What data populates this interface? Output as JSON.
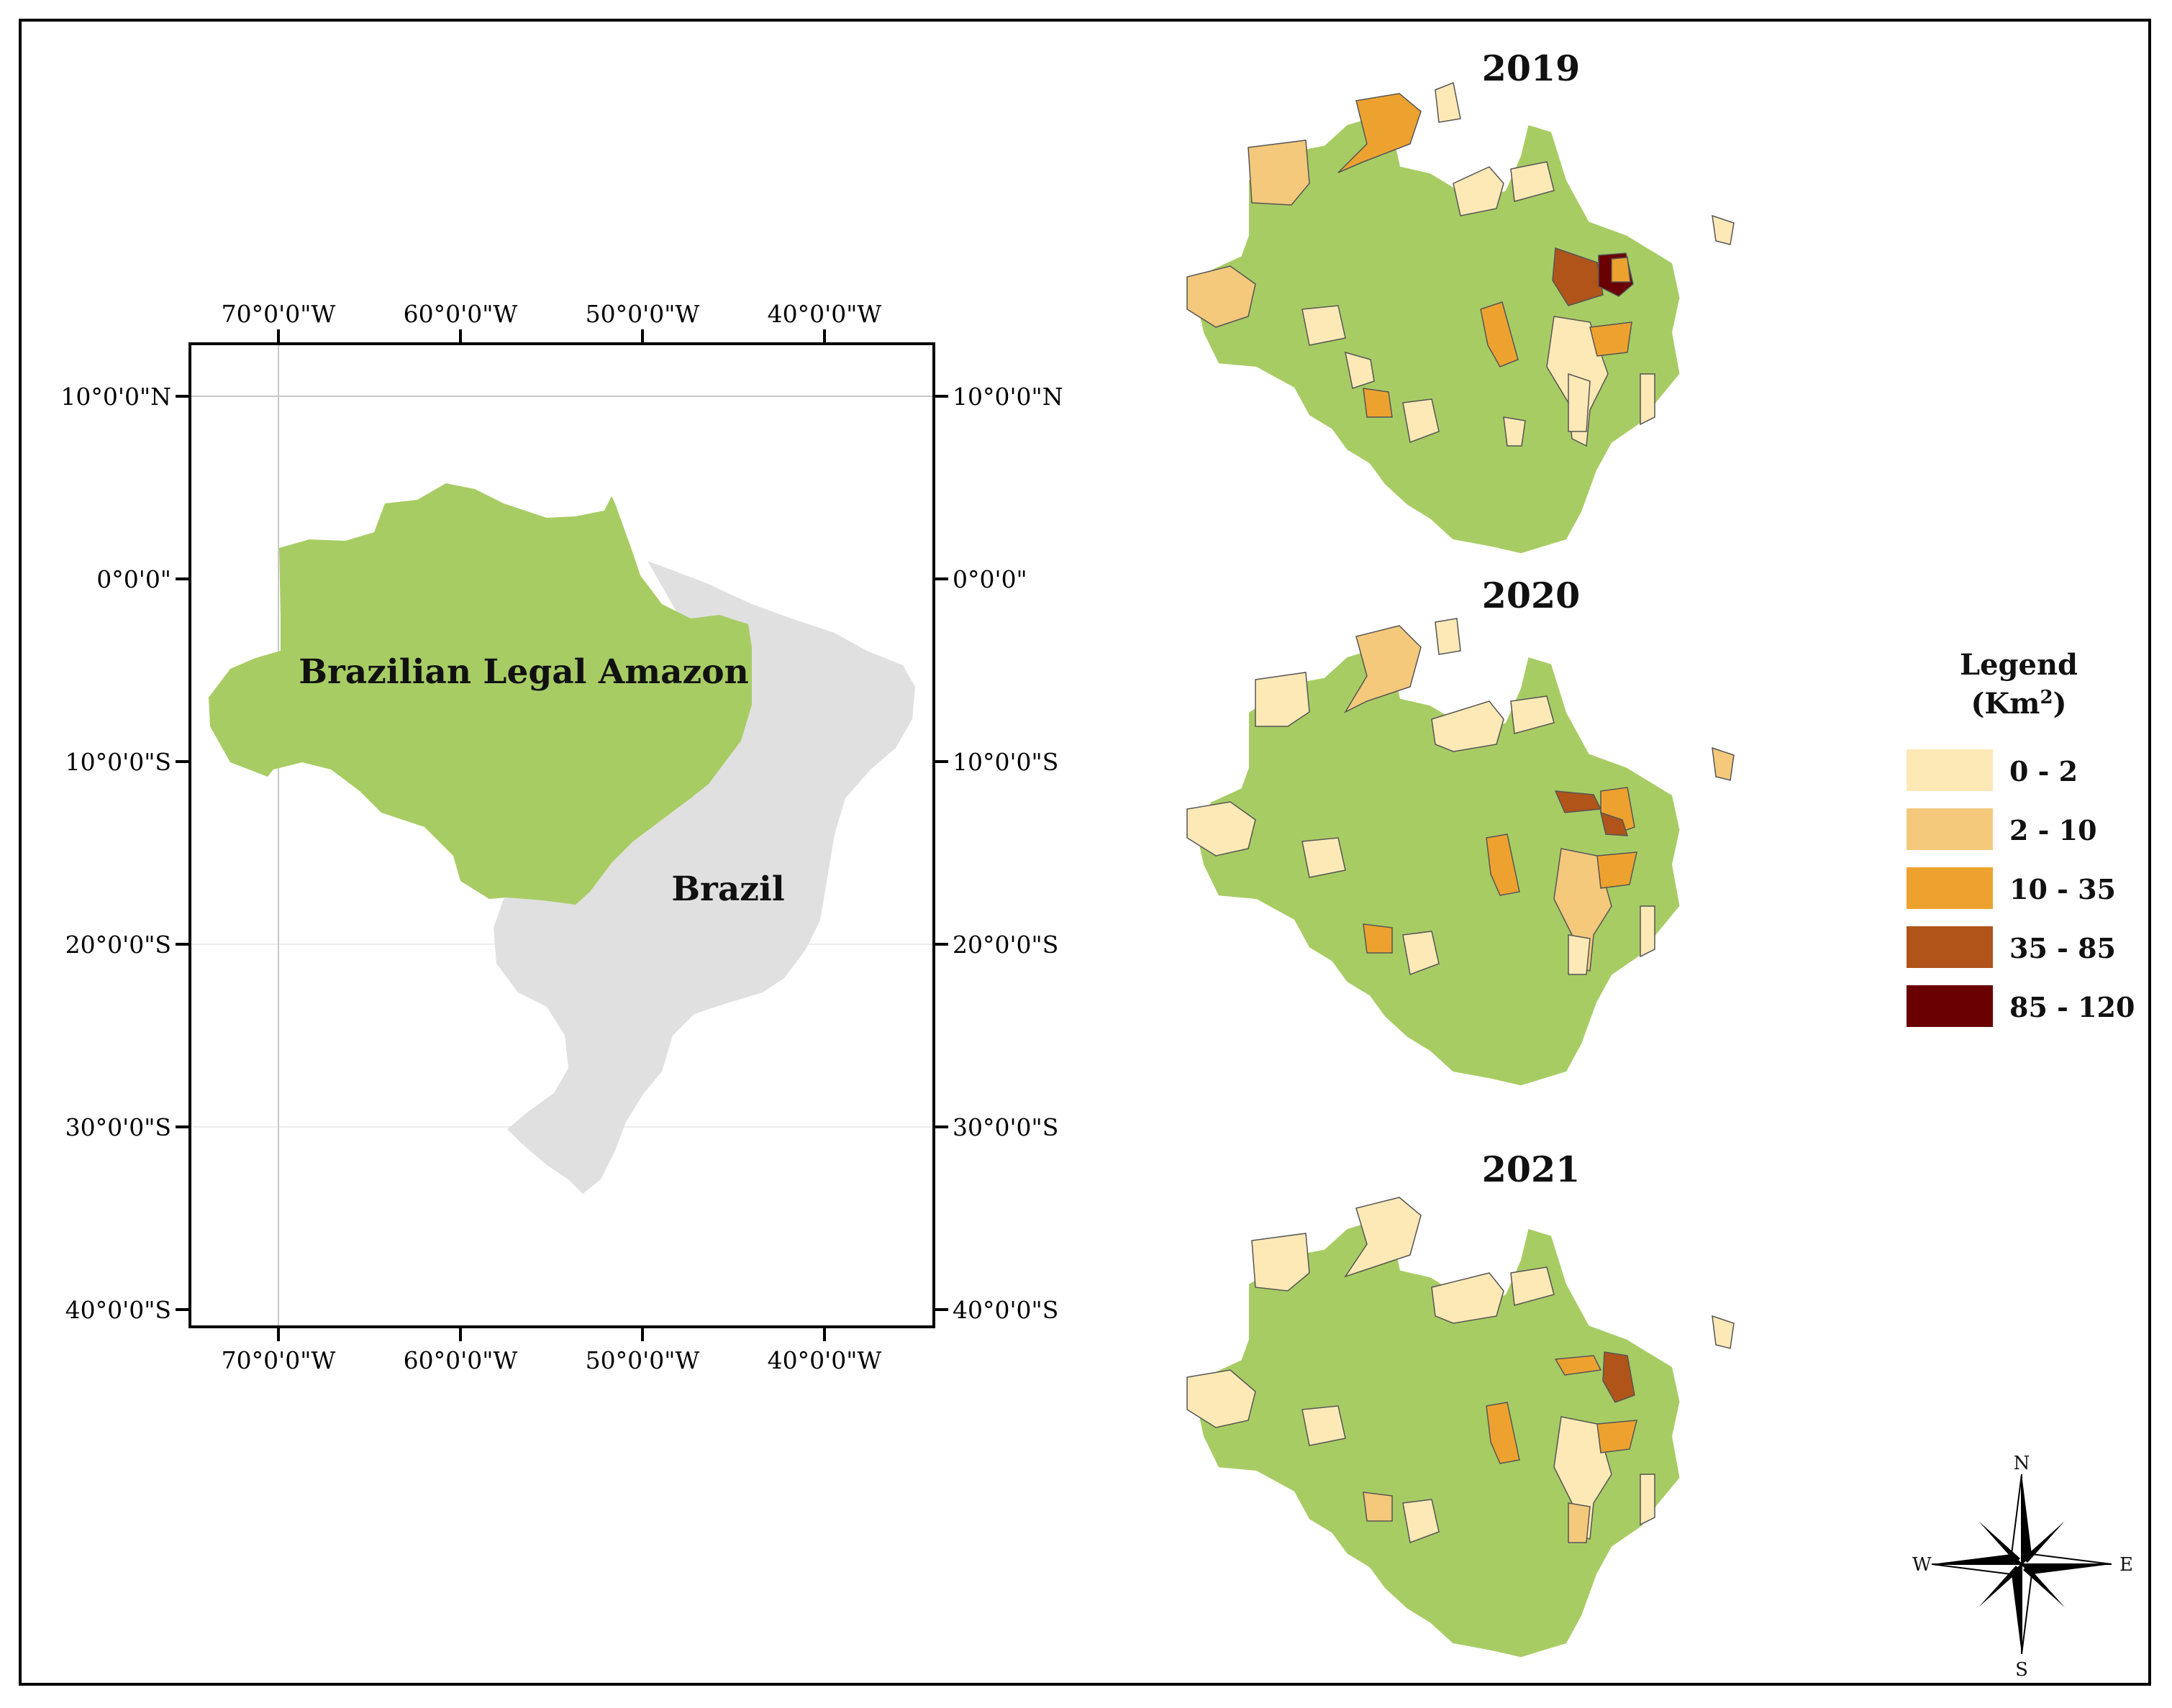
{
  "inset_map": {
    "top_ticks": [
      "70°0'0\"W",
      "60°0'0\"W",
      "50°0'0\"W",
      "40°0'0\"W"
    ],
    "bottom_ticks": [
      "70°0'0\"W",
      "60°0'0\"W",
      "50°0'0\"W",
      "40°0'0\"W"
    ],
    "left_ticks": [
      "10°0'0\"N",
      "0°0'0\"",
      "10°0'0\"S",
      "20°0'0\"S",
      "30°0'0\"S",
      "40°0'0\"S"
    ],
    "right_ticks": [
      "10°0'0\"N",
      "0°0'0\"",
      "10°0'0\"S",
      "20°0'0\"S",
      "30°0'0\"S",
      "40°0'0\"S"
    ],
    "amazon_label": "Brazilian Legal Amazon",
    "brazil_label": "Brazil",
    "colors": {
      "amazon": "#a8cc64",
      "brazil": "#e0e0e0",
      "gridline": "#c8c8c8"
    }
  },
  "panels": [
    {
      "year": "2019"
    },
    {
      "year": "2020"
    },
    {
      "year": "2021"
    }
  ],
  "legend": {
    "title_line1": "Legend",
    "title_unit": "(Km",
    "title_sup": "2",
    "title_close": ")",
    "classes": [
      {
        "label": "0 - 2",
        "color": "#fde9b6"
      },
      {
        "label": "2 - 10",
        "color": "#f4c97c"
      },
      {
        "label": "10 - 35",
        "color": "#eda22f"
      },
      {
        "label": "35 - 85",
        "color": "#b0541a"
      },
      {
        "label": "85 - 120",
        "color": "#6a0000"
      }
    ]
  },
  "compass": {
    "n": "N",
    "s": "S",
    "e": "E",
    "w": "W"
  },
  "map_colors": {
    "amazon_base": "#a8cc64"
  }
}
